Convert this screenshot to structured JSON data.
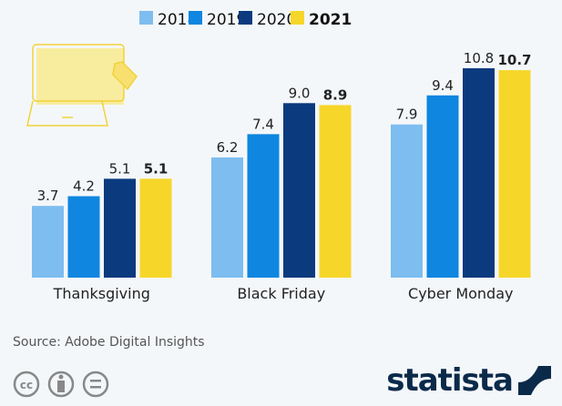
{
  "chart_data": {
    "type": "bar",
    "categories": [
      "Thanksgiving",
      "Black Friday",
      "Cyber Monday"
    ],
    "series": [
      {
        "name": "2018",
        "color": "#7dbdf0",
        "values": [
          3.7,
          6.2,
          7.9
        ]
      },
      {
        "name": "2019",
        "color": "#0f86e0",
        "values": [
          4.2,
          7.4,
          9.4
        ]
      },
      {
        "name": "2020",
        "color": "#0b3a7e",
        "values": [
          5.1,
          9.0,
          10.8
        ]
      },
      {
        "name": "2021",
        "color": "#f7d62a",
        "values": [
          5.1,
          8.9,
          10.7
        ],
        "bold": true
      }
    ],
    "ylim": [
      0,
      11
    ],
    "grid": false,
    "legend": "top-center",
    "title": "",
    "xlabel": "",
    "ylabel": ""
  },
  "footer": {
    "source": "Source: Adobe Digital Insights",
    "logo": "statista",
    "license_icons": [
      "cc-icon",
      "attribution-icon",
      "no-derivatives-icon"
    ]
  }
}
